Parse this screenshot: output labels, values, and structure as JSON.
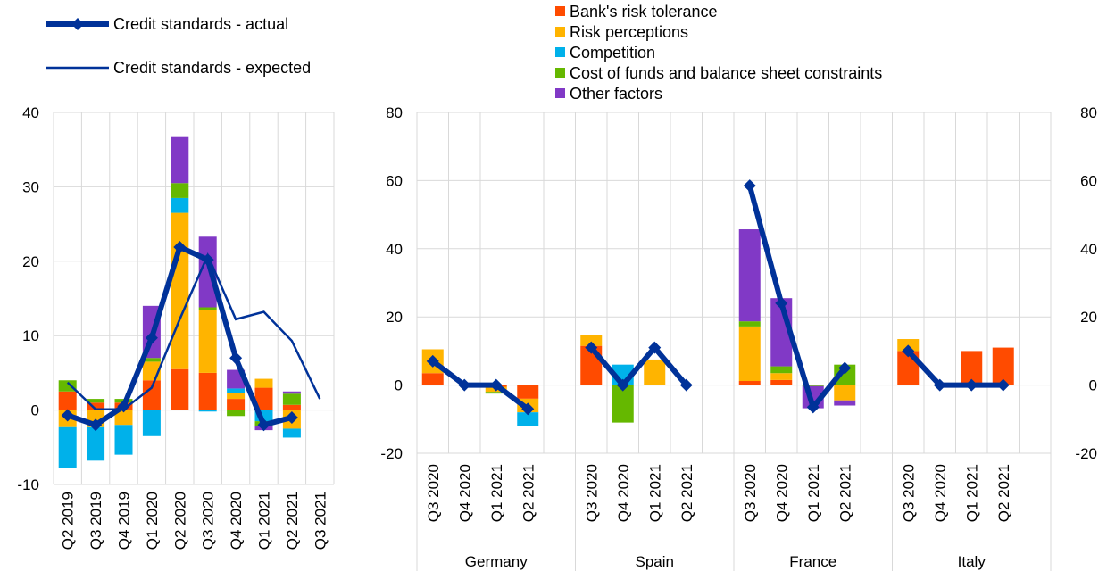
{
  "legend": {
    "actual": "Credit standards - actual",
    "expected": "Credit standards - expected",
    "factors": [
      "Bank's risk tolerance",
      "Risk perceptions",
      "Competition",
      "Cost of funds and balance sheet constraints",
      "Other factors"
    ]
  },
  "colors": {
    "risk_tolerance": "#ff4b00",
    "risk_perceptions": "#ffb400",
    "competition": "#00b1ea",
    "cost_of_funds": "#65b800",
    "other": "#8139c6",
    "line": "#003299",
    "grid": "#d9d9d9"
  },
  "chart_data": [
    {
      "type": "bar",
      "stacked": true,
      "categories": [
        "Q2 2019",
        "Q3 2019",
        "Q4 2019",
        "Q1 2020",
        "Q2 2020",
        "Q3 2020",
        "Q4 2020",
        "Q1 2021",
        "Q2 2021",
        "Q3 2021"
      ],
      "ylim": [
        -10,
        40
      ],
      "yticks": [
        -10,
        0,
        10,
        20,
        30,
        40
      ],
      "series": [
        {
          "name": "Bank's risk tolerance",
          "values": [
            2.5,
            1.0,
            1.0,
            4.0,
            5.5,
            5.0,
            1.5,
            3.0,
            0.7,
            0
          ]
        },
        {
          "name": "Risk perceptions",
          "values": [
            -2.3,
            -2.3,
            -2.0,
            2.5,
            21.0,
            8.5,
            0.8,
            1.2,
            -2.5,
            0
          ]
        },
        {
          "name": "Competition",
          "values": [
            -5.5,
            -4.5,
            -4.0,
            -3.5,
            2.0,
            -0.2,
            0.6,
            -1.5,
            -1.2,
            0
          ]
        },
        {
          "name": "Cost of funds and balance sheet constraints",
          "values": [
            1.5,
            0.5,
            0.5,
            0.5,
            2.0,
            0.3,
            -0.8,
            -0.6,
            1.5,
            0
          ]
        },
        {
          "name": "Other factors",
          "values": [
            0,
            0,
            0,
            7.0,
            6.3,
            9.5,
            2.5,
            -0.6,
            0.3,
            0
          ]
        }
      ],
      "lines": [
        {
          "name": "Credit standards - actual",
          "values": [
            -0.7,
            -2.0,
            0.5,
            9.7,
            21.9,
            20.2,
            7.0,
            -2.0,
            -1.0,
            null
          ]
        },
        {
          "name": "Credit standards - expected",
          "values": [
            3.7,
            0.1,
            0.1,
            3.0,
            12.2,
            20.8,
            12.2,
            13.2,
            9.3,
            1.5
          ]
        }
      ]
    },
    {
      "type": "bar",
      "stacked": true,
      "groups": [
        {
          "name": "Germany",
          "categories": [
            "Q3 2020",
            "Q4 2020",
            "Q1 2021",
            "Q2 2021"
          ]
        },
        {
          "name": "Spain",
          "categories": [
            "Q3 2020",
            "Q4 2020",
            "Q1 2021",
            "Q2 2021"
          ]
        },
        {
          "name": "France",
          "categories": [
            "Q3 2020",
            "Q4 2020",
            "Q1 2021",
            "Q2 2021"
          ]
        },
        {
          "name": "Italy",
          "categories": [
            "Q3 2020",
            "Q4 2020",
            "Q1 2021",
            "Q2 2021"
          ]
        }
      ],
      "ylim": [
        -20,
        80
      ],
      "yticks": [
        -20,
        0,
        20,
        40,
        60,
        80
      ],
      "series": [
        {
          "name": "Bank's risk tolerance",
          "values": [
            3.5,
            0,
            -0.5,
            -4.0,
            11.5,
            0,
            0,
            0,
            1.2,
            1.5,
            0,
            0,
            10.0,
            0,
            10.0,
            11.0
          ]
        },
        {
          "name": "Risk perceptions",
          "values": [
            7.0,
            0,
            -1.5,
            -4.0,
            3.3,
            0,
            7.5,
            0,
            16.0,
            2.0,
            0,
            -4.5,
            3.5,
            0,
            0,
            0
          ]
        },
        {
          "name": "Competition",
          "values": [
            0,
            0,
            0,
            -4.0,
            0,
            6.0,
            0,
            0,
            0,
            0,
            0,
            0,
            0,
            0,
            0,
            0
          ]
        },
        {
          "name": "Cost of funds and balance sheet constraints",
          "values": [
            0,
            0,
            -0.5,
            0,
            0,
            -11.0,
            0,
            0,
            1.5,
            2.0,
            -0.3,
            6.0,
            0,
            0,
            0,
            0
          ]
        },
        {
          "name": "Other factors",
          "values": [
            0,
            0,
            0,
            0,
            0,
            0,
            0,
            0,
            27.0,
            20.0,
            -6.5,
            -1.5,
            0,
            0,
            0,
            0
          ]
        }
      ],
      "lines": [
        {
          "name": "Credit standards - actual",
          "values": [
            7.0,
            0,
            0,
            -7.0,
            11.0,
            0,
            11.0,
            0,
            58.5,
            24.0,
            -6.5,
            5.0,
            10.0,
            0,
            0,
            0
          ]
        }
      ]
    }
  ]
}
